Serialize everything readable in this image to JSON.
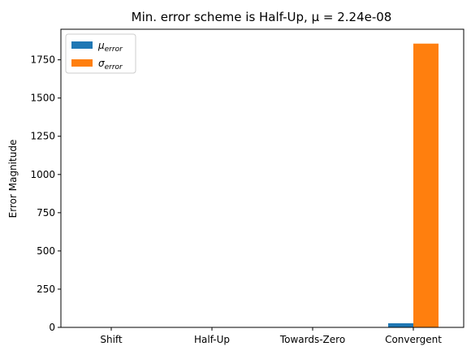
{
  "chart_data": {
    "type": "bar",
    "title": "Min. error scheme is Half-Up, μ = 2.24e-08",
    "xlabel": "",
    "ylabel": "Error Magnitude",
    "categories": [
      "Shift",
      "Half-Up",
      "Towards-Zero",
      "Convergent"
    ],
    "series": [
      {
        "name_base": "μ",
        "name_sub": "error",
        "color": "#1f77b4",
        "values": [
          0.5,
          0.0,
          0.5,
          27
        ]
      },
      {
        "name_base": "σ",
        "name_sub": "error",
        "color": "#ff7f0e",
        "values": [
          0.5,
          0.3,
          0.6,
          1856
        ]
      }
    ],
    "ylim": [
      0,
      1950
    ],
    "yticks": [
      0,
      250,
      500,
      750,
      1000,
      1250,
      1500,
      1750
    ],
    "grid": false,
    "legend_position": "top-left"
  }
}
